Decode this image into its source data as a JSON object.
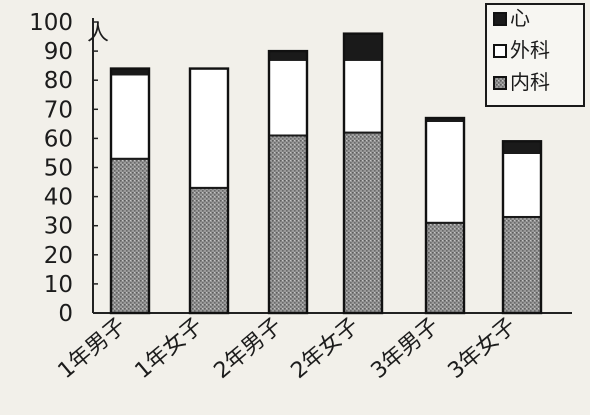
{
  "chart_data": {
    "type": "bar",
    "stacked": true,
    "title": "",
    "xlabel": "",
    "ylabel": "人",
    "ylim": [
      0,
      100
    ],
    "yticks": [
      0,
      10,
      20,
      30,
      40,
      50,
      60,
      70,
      80,
      90,
      100
    ],
    "grid": false,
    "legend_position": "top-right",
    "categories": [
      "1年男子",
      "1年女子",
      "2年男子",
      "2年女子",
      "3年男子",
      "3年女子"
    ],
    "series": [
      {
        "name": "内科",
        "values": [
          53,
          43,
          61,
          62,
          31,
          33
        ],
        "fill": "stipple-gray"
      },
      {
        "name": "外科",
        "values": [
          29,
          41,
          26,
          25,
          35,
          22
        ],
        "fill": "white"
      },
      {
        "name": "心",
        "values": [
          2,
          0,
          3,
          9,
          1,
          4
        ],
        "fill": "#1a1a1a"
      }
    ]
  }
}
